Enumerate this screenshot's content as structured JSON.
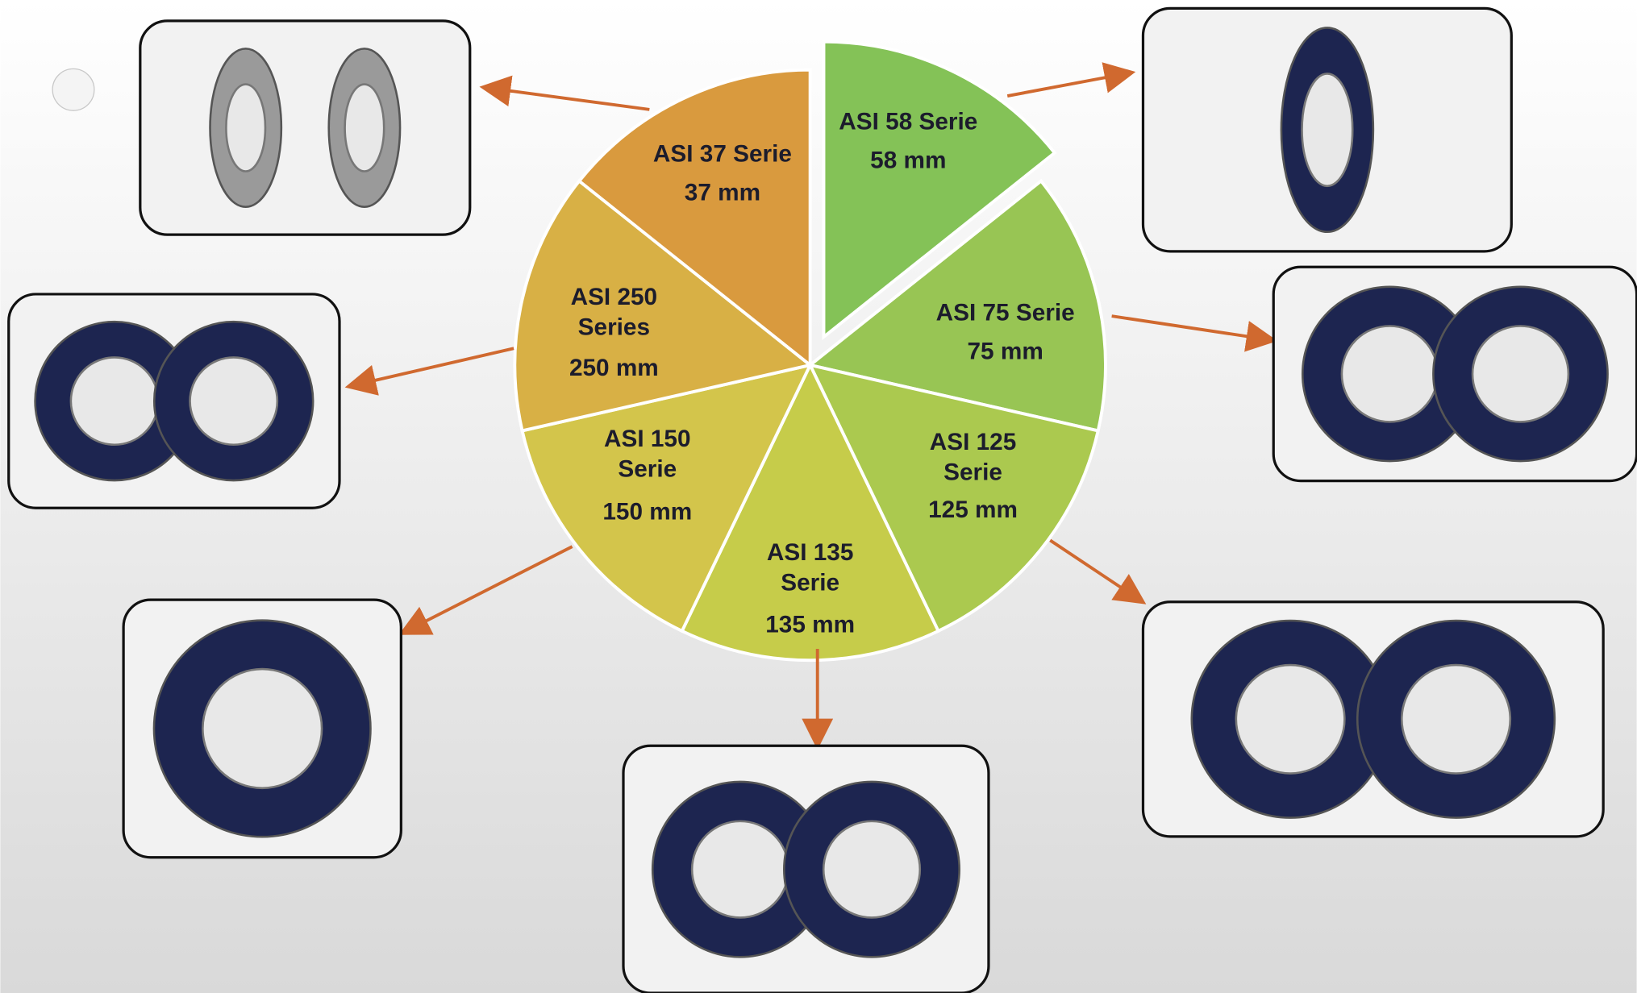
{
  "segments": [
    {
      "label": [
        "ASI 58 Serie"
      ],
      "size": "58 mm",
      "color": "#84c257",
      "exploded": true
    },
    {
      "label": [
        "ASI 75 Serie"
      ],
      "size": "75 mm",
      "color": "#98c554"
    },
    {
      "label": [
        "ASI 125",
        "Serie"
      ],
      "size": "125 mm",
      "color": "#abc94f"
    },
    {
      "label": [
        "ASI 135",
        "Serie"
      ],
      "size": "135 mm",
      "color": "#c6cc4a"
    },
    {
      "label": [
        "ASI 150",
        "Serie"
      ],
      "size": "150 mm",
      "color": "#d3c54b"
    },
    {
      "label": [
        "ASI 250",
        "Series"
      ],
      "size": "250 mm",
      "color": "#d8b045"
    },
    {
      "label": [
        "ASI 37 Serie"
      ],
      "size": "37 mm",
      "color": "#d99a3e"
    }
  ]
}
